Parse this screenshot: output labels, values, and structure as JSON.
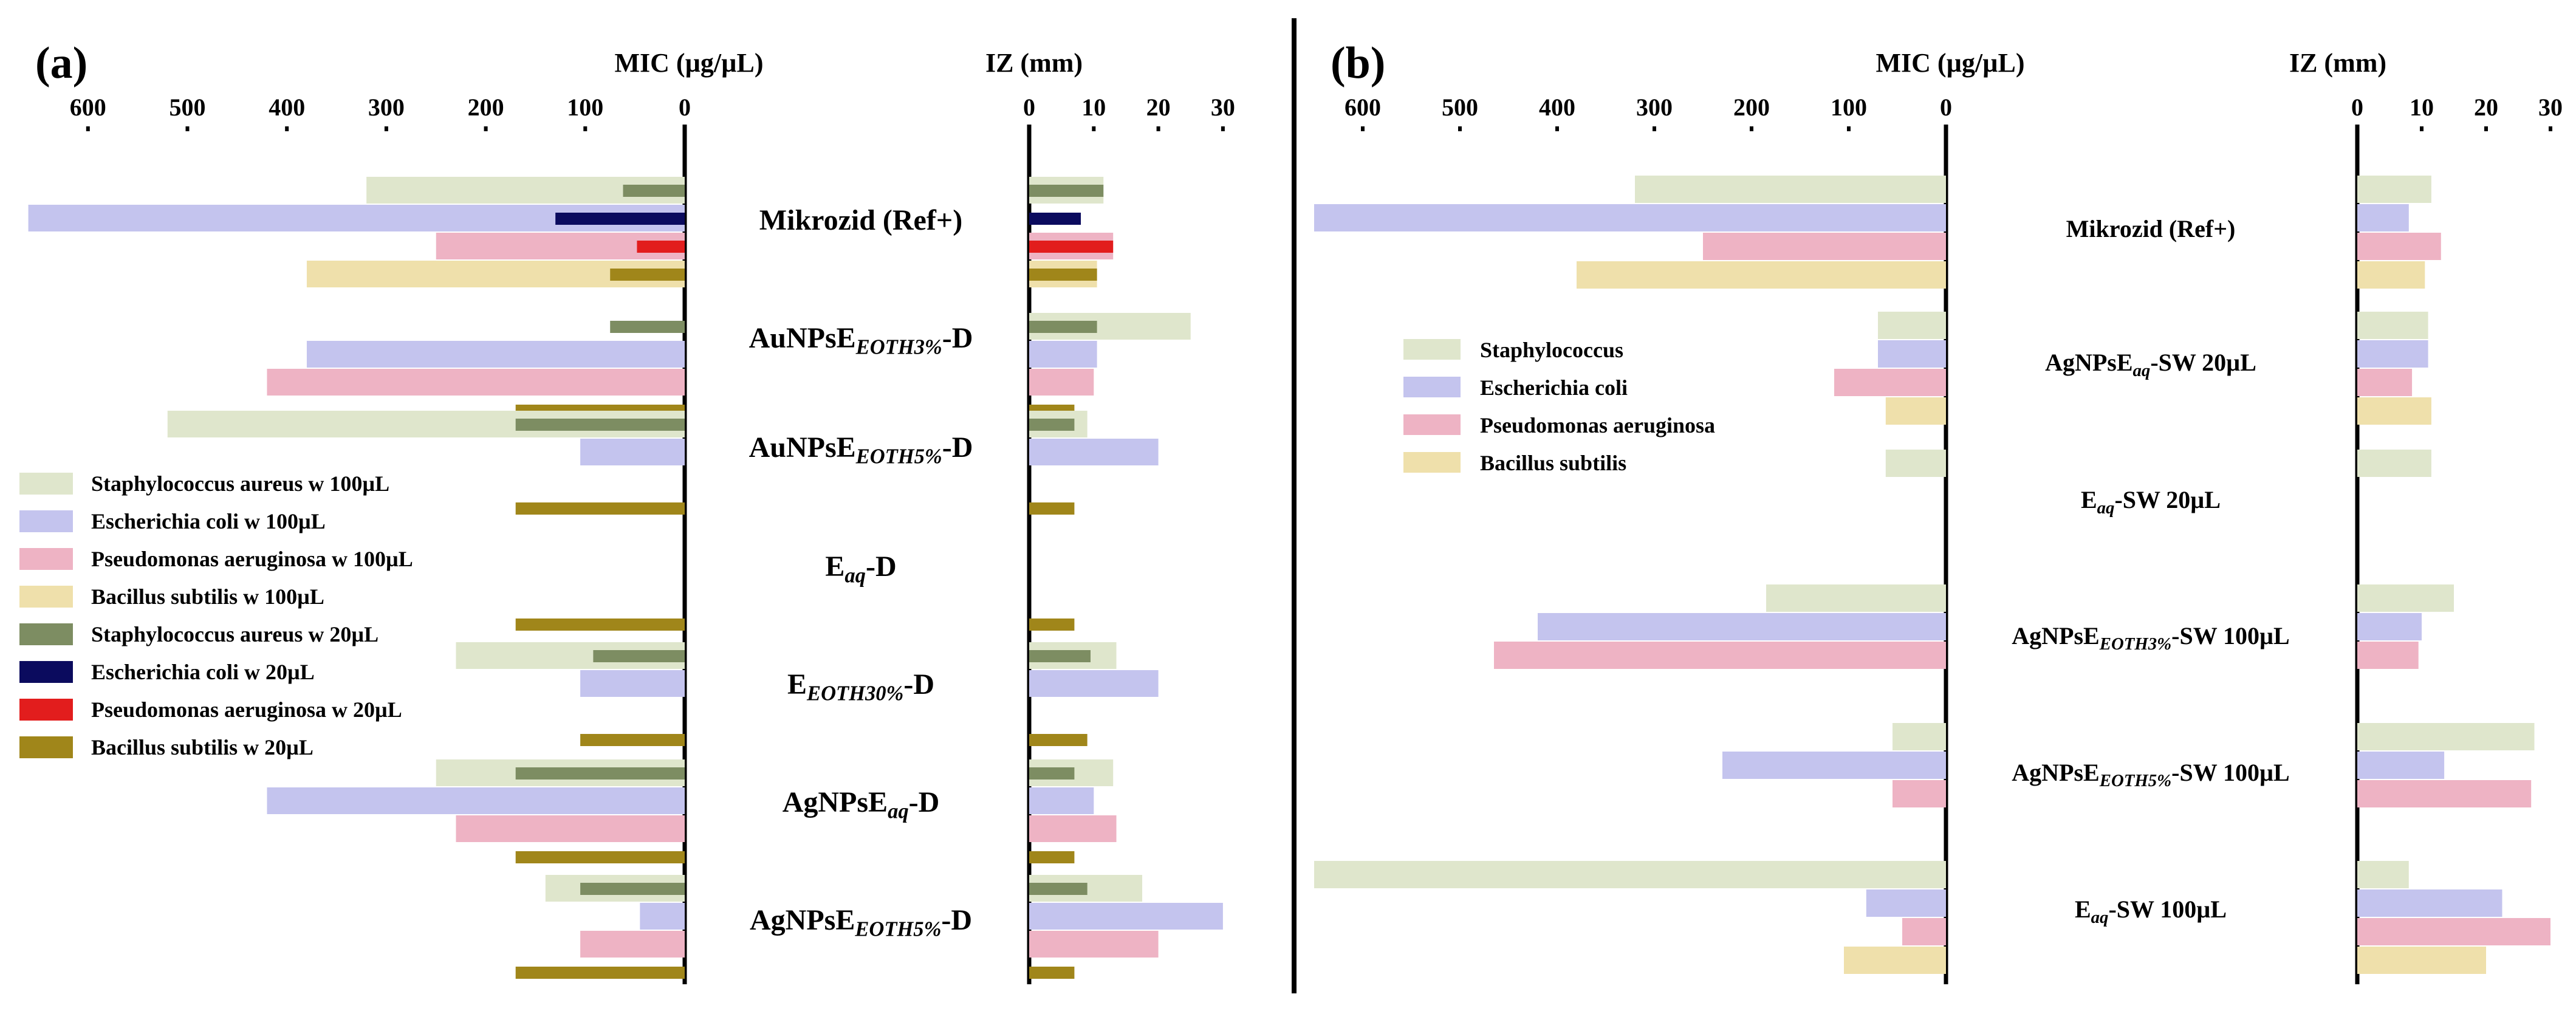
{
  "colors": {
    "staph100": "#dfe6cc",
    "ecoli100": "#c4c4ee",
    "pseudo100": "#eeb3c4",
    "bacillus100": "#efe0ab",
    "staph20": "#7d8d62",
    "ecoli20": "#0b0b5e",
    "pseudo20": "#e21d1d",
    "bacillus20": "#a0861a"
  },
  "chart_data": [
    {
      "type": "bar",
      "panel": "(a)",
      "mic_title": "MIC (µg/µL)",
      "iz_title": "IZ (mm)",
      "mic_ticks": [
        "600",
        "500",
        "400",
        "300",
        "200",
        "100",
        "0"
      ],
      "iz_ticks": [
        "0",
        "10",
        "20",
        "30"
      ],
      "mic_range": [
        0,
        650
      ],
      "iz_range": [
        0,
        30
      ],
      "legend_position": "left",
      "legend": [
        {
          "key": "staph100",
          "label": "Staphylococcus aureus w 100µL"
        },
        {
          "key": "ecoli100",
          "label": "Escherichia coli w 100µL"
        },
        {
          "key": "pseudo100",
          "label": "Pseudomonas aeruginosa w 100µL"
        },
        {
          "key": "bacillus100",
          "label": "Bacillus subtilis w 100µL"
        },
        {
          "key": "staph20",
          "label": "Staphylococcus aureus w 20µL"
        },
        {
          "key": "ecoli20",
          "label": "Escherichia coli w 20µL"
        },
        {
          "key": "pseudo20",
          "label": "Pseudomonas aeruginosa w 20µL"
        },
        {
          "key": "bacillus20",
          "label": "Bacillus subtilis w 20µL"
        }
      ],
      "groups": [
        {
          "label_main": "Mikrozid (Ref+)",
          "label_sub": "",
          "label_tail": "",
          "mic_wide": [
            320,
            660,
            250,
            380
          ],
          "iz_wide": [
            11.5,
            null,
            13,
            10.5
          ],
          "mic_thin": [
            62,
            130,
            48,
            75
          ],
          "iz_thin": [
            11.5,
            8,
            13,
            10.5
          ]
        },
        {
          "label_main": "AuNPsE",
          "label_sub": "EOTH3%",
          "label_tail": "-D",
          "mic_wide": [
            null,
            380,
            420,
            null
          ],
          "iz_wide": [
            25,
            10.5,
            10,
            null
          ],
          "mic_thin": [
            75,
            null,
            null,
            170
          ],
          "iz_thin": [
            10.5,
            null,
            null,
            7
          ]
        },
        {
          "label_main": "AuNPsE",
          "label_sub": "EOTH5%",
          "label_tail": "-D",
          "mic_wide": [
            520,
            105,
            null,
            null
          ],
          "iz_wide": [
            9,
            20,
            null,
            null
          ],
          "mic_thin": [
            170,
            null,
            null,
            170
          ],
          "iz_thin": [
            7,
            null,
            null,
            7
          ]
        },
        {
          "label_main": "E",
          "label_sub": "aq",
          "label_tail": "-D",
          "mic_wide": [
            null,
            null,
            null,
            null
          ],
          "iz_wide": [
            null,
            null,
            null,
            null
          ],
          "mic_thin": [
            null,
            null,
            null,
            170
          ],
          "iz_thin": [
            null,
            null,
            null,
            7
          ]
        },
        {
          "label_main": "E",
          "label_sub": "EOTH30%",
          "label_tail": "-D",
          "mic_wide": [
            230,
            105,
            null,
            null
          ],
          "iz_wide": [
            13.5,
            20,
            null,
            null
          ],
          "mic_thin": [
            92,
            null,
            null,
            105
          ],
          "iz_thin": [
            9.5,
            null,
            null,
            9
          ]
        },
        {
          "label_main": "AgNPsE",
          "label_sub": "aq",
          "label_tail": "-D",
          "mic_wide": [
            250,
            420,
            230,
            null
          ],
          "iz_wide": [
            13,
            10,
            13.5,
            null
          ],
          "mic_thin": [
            170,
            null,
            null,
            170
          ],
          "iz_thin": [
            7,
            null,
            null,
            7
          ]
        },
        {
          "label_main": "AgNPsE",
          "label_sub": "EOTH5%",
          "label_tail": "-D",
          "mic_wide": [
            140,
            45,
            105,
            null
          ],
          "iz_wide": [
            17.5,
            30,
            20,
            null
          ],
          "mic_thin": [
            105,
            null,
            null,
            170
          ],
          "iz_thin": [
            9,
            null,
            null,
            7
          ]
        }
      ]
    },
    {
      "type": "bar",
      "panel": "(b)",
      "mic_title": "MIC (µg/µL)",
      "iz_title": "IZ (mm)",
      "mic_ticks": [
        "600",
        "500",
        "400",
        "300",
        "200",
        "100",
        "0"
      ],
      "iz_ticks": [
        "0",
        "10",
        "20",
        "30"
      ],
      "mic_range": [
        0,
        650
      ],
      "iz_range": [
        0,
        30
      ],
      "legend_position": "left",
      "legend": [
        {
          "key": "staph100",
          "label": "Staphylococcus"
        },
        {
          "key": "ecoli100",
          "label": "Escherichia coli"
        },
        {
          "key": "pseudo100",
          "label": "Pseudomonas aeruginosa"
        },
        {
          "key": "bacillus100",
          "label": "Bacillus subtilis"
        }
      ],
      "groups": [
        {
          "label_main": "Mikrozid (Ref+)",
          "label_sub": "",
          "label_tail": "",
          "mic": [
            320,
            650,
            250,
            380
          ],
          "iz": [
            11.5,
            8,
            13,
            10.5
          ]
        },
        {
          "label_main": "AgNPsE",
          "label_sub": "aq",
          "label_tail": "-SW 20µL",
          "mic": [
            70,
            70,
            115,
            62
          ],
          "iz": [
            11,
            11,
            8.5,
            11.5
          ]
        },
        {
          "label_main": "E",
          "label_sub": "aq",
          "label_tail": "-SW 20µL",
          "mic": [
            62,
            null,
            null,
            null
          ],
          "iz": [
            11.5,
            null,
            null,
            null
          ]
        },
        {
          "label_main": "AgNPsE",
          "label_sub": "EOTH3%",
          "label_tail": "-SW 100µL",
          "mic": [
            185,
            420,
            465,
            null
          ],
          "iz": [
            15,
            10,
            9.5,
            null
          ]
        },
        {
          "label_main": "AgNPsE",
          "label_sub": "EOTH5%",
          "label_tail": "-SW 100µL",
          "mic": [
            55,
            230,
            55,
            null
          ],
          "iz": [
            27.5,
            13.5,
            27,
            null
          ]
        },
        {
          "label_main": "E",
          "label_sub": "aq",
          "label_tail": "-SW 100µL",
          "mic": [
            650,
            82,
            45,
            105
          ],
          "iz": [
            8,
            22.5,
            30,
            20
          ]
        }
      ]
    }
  ]
}
